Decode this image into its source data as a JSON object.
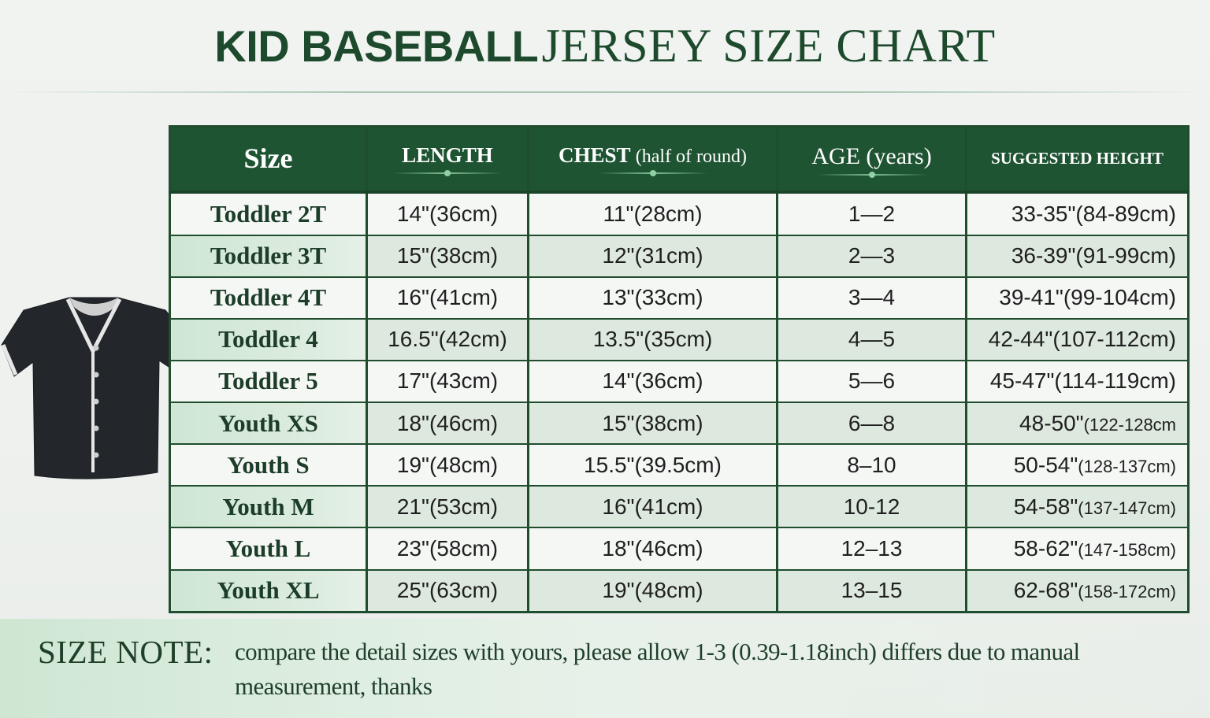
{
  "title": {
    "part1": "KID BASEBALL",
    "part2": "JERSEY SIZE CHART"
  },
  "table": {
    "headers": {
      "size": "Size",
      "length": "LENGTH",
      "chest": "CHEST",
      "chest_sub": "(half of round)",
      "age": "AGE (years)",
      "height": "SUGGESTED HEIGHT"
    },
    "rows": [
      {
        "size": "Toddler 2T",
        "length": "14\"(36cm)",
        "chest": "11\"(28cm)",
        "age": "1—2",
        "height": "33-35\"(84-89cm)",
        "height_small": ""
      },
      {
        "size": "Toddler 3T",
        "length": "15\"(38cm)",
        "chest": "12\"(31cm)",
        "age": "2—3",
        "height": "36-39\"(91-99cm)",
        "height_small": ""
      },
      {
        "size": "Toddler 4T",
        "length": "16\"(41cm)",
        "chest": "13\"(33cm)",
        "age": "3—4",
        "height": "39-41\"(99-104cm)",
        "height_small": ""
      },
      {
        "size": "Toddler 4",
        "length": "16.5\"(42cm)",
        "chest": "13.5\"(35cm)",
        "age": "4—5",
        "height": "42-44\"(107-112cm)",
        "height_small": ""
      },
      {
        "size": "Toddler 5",
        "length": "17\"(43cm)",
        "chest": "14\"(36cm)",
        "age": "5—6",
        "height": "45-47\"(114-119cm)",
        "height_small": ""
      },
      {
        "size": "Youth XS",
        "length": "18\"(46cm)",
        "chest": "15\"(38cm)",
        "age": "6—8",
        "height": "48-50\"",
        "height_small": "(122-128cm"
      },
      {
        "size": "Youth S",
        "length": "19\"(48cm)",
        "chest": "15.5\"(39.5cm)",
        "age": "8–10",
        "height": "50-54\"",
        "height_small": "(128-137cm)"
      },
      {
        "size": "Youth M",
        "length": "21\"(53cm)",
        "chest": "16\"(41cm)",
        "age": "10-12",
        "height": "54-58\"",
        "height_small": "(137-147cm)"
      },
      {
        "size": "Youth L",
        "length": "23\"(58cm)",
        "chest": "18\"(46cm)",
        "age": "12–13",
        "height": "58-62\"",
        "height_small": "(147-158cm)"
      },
      {
        "size": "Youth XL",
        "length": "25\"(63cm)",
        "chest": "19\"(48cm)",
        "age": "13–15",
        "height": "62-68\"",
        "height_small": "(158-172cm)"
      }
    ]
  },
  "note": {
    "label": "SIZE NOTE:",
    "text": "compare the detail sizes with yours, please allow 1-3 (0.39-1.18inch) differs due to manual measurement, thanks"
  },
  "colors": {
    "header_green": "#1f5433",
    "border_green": "#1f4d2e",
    "title_green": "#1d4a2c",
    "jersey_body": "#23272b",
    "jersey_trim": "#e6e6e6"
  }
}
